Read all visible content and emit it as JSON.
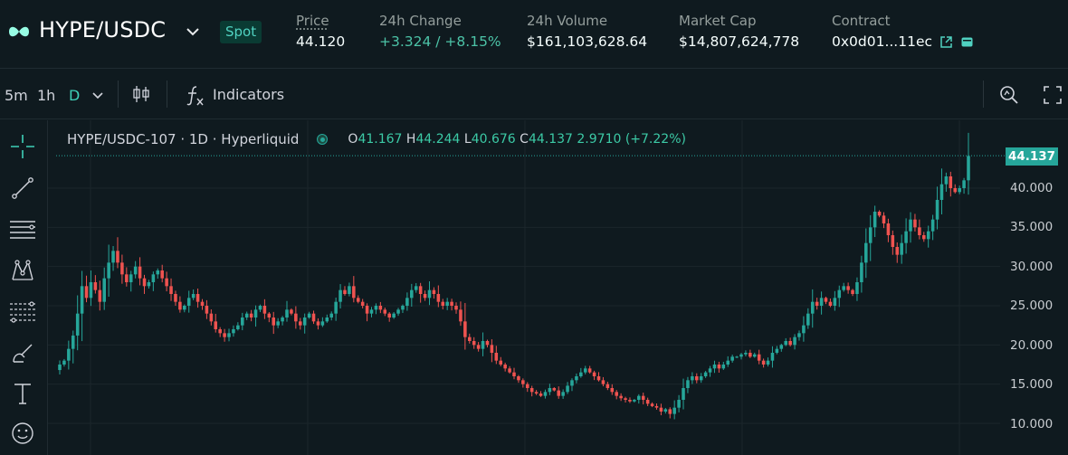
{
  "colors": {
    "background": "#0f1a1f",
    "accent": "#50d2c1",
    "up": "#26a69a",
    "down": "#ef5350",
    "positive_text": "#4cc3a7"
  },
  "header": {
    "pair": "HYPE/USDC",
    "market_type": "Spot",
    "stats": [
      {
        "label": "Price",
        "value": "44.120"
      },
      {
        "label": "24h Change",
        "value": "+3.324 / +8.15%"
      },
      {
        "label": "24h Volume",
        "value": "$161,103,628.64"
      },
      {
        "label": "Market Cap",
        "value": "$14,807,624,778"
      },
      {
        "label": "Contract",
        "value": "0x0d01...11ec"
      }
    ]
  },
  "toolbar": {
    "timeframes": [
      "5m",
      "1h",
      "D"
    ],
    "active_timeframe": "D",
    "indicators_label": "Indicators"
  },
  "chart": {
    "legend_title": "HYPE/USDC-107 · 1D · Hyperliquid",
    "ohlc": {
      "o_key": "O",
      "o": "41.167",
      "h_key": "H",
      "h": "44.244",
      "l_key": "L",
      "l": "40.676",
      "c_key": "C",
      "c": "44.137",
      "change": "2.9710 (+7.22%)"
    },
    "last_price_tag": "44.137",
    "y_ticks": [
      "40.000",
      "35.000",
      "30.000",
      "25.000",
      "20.000",
      "15.000",
      "10.000"
    ],
    "icons": [
      "crosshair-icon",
      "trendline-icon",
      "horizontal-lines-icon",
      "pattern-icon",
      "fib-icon",
      "brush-icon",
      "text-icon",
      "emoji-icon"
    ]
  },
  "chart_data": {
    "type": "candlestick",
    "ylabel": "",
    "ylim": [
      8.5,
      45.5
    ],
    "y_ticks": [
      10,
      15,
      20,
      25,
      30,
      35,
      40
    ],
    "last_close": 44.137,
    "closes": [
      17.5,
      18.0,
      19.5,
      21.2,
      24.0,
      27.5,
      26.0,
      28.0,
      27.0,
      25.5,
      28.5,
      30.5,
      32.0,
      30.5,
      29.0,
      28.0,
      29.0,
      30.0,
      28.5,
      27.5,
      28.0,
      29.0,
      29.5,
      28.5,
      27.5,
      26.5,
      25.5,
      24.5,
      25.0,
      26.0,
      26.5,
      25.5,
      25.0,
      24.0,
      23.0,
      22.0,
      21.5,
      21.0,
      21.5,
      22.0,
      22.5,
      23.5,
      24.0,
      23.5,
      24.5,
      25.0,
      24.0,
      23.5,
      22.5,
      23.0,
      23.5,
      24.5,
      24.0,
      23.0,
      22.5,
      23.5,
      24.0,
      23.0,
      22.5,
      23.0,
      23.5,
      24.0,
      25.5,
      27.0,
      26.5,
      27.5,
      26.0,
      25.5,
      25.0,
      24.0,
      24.5,
      25.0,
      24.5,
      24.0,
      23.5,
      24.0,
      24.5,
      25.0,
      26.0,
      27.0,
      27.5,
      26.5,
      26.0,
      27.0,
      26.5,
      25.5,
      25.0,
      25.5,
      25.0,
      24.5,
      23.0,
      21.0,
      20.5,
      20.0,
      19.5,
      20.5,
      20.0,
      19.0,
      18.0,
      17.5,
      17.0,
      16.5,
      16.0,
      15.5,
      15.0,
      14.5,
      14.0,
      13.8,
      13.5,
      14.0,
      14.5,
      14.2,
      13.5,
      14.0,
      14.8,
      15.5,
      16.0,
      16.5,
      17.0,
      16.5,
      16.0,
      15.5,
      15.0,
      14.5,
      14.0,
      13.5,
      13.2,
      13.0,
      12.8,
      13.0,
      13.5,
      13.0,
      12.5,
      12.2,
      12.0,
      11.5,
      11.8,
      11.2,
      12.0,
      13.0,
      14.5,
      15.5,
      16.0,
      15.5,
      16.0,
      16.5,
      17.0,
      17.5,
      17.0,
      17.5,
      18.0,
      18.5,
      18.5,
      18.8,
      19.0,
      18.5,
      18.8,
      18.0,
      17.5,
      18.0,
      19.0,
      19.5,
      20.0,
      20.5,
      20.0,
      21.0,
      21.5,
      22.5,
      24.0,
      25.5,
      25.0,
      26.0,
      25.5,
      25.0,
      26.0,
      27.0,
      27.5,
      27.0,
      26.5,
      28.0,
      30.5,
      33.0,
      35.0,
      37.0,
      36.5,
      35.5,
      34.0,
      32.5,
      31.5,
      33.0,
      34.5,
      36.0,
      35.0,
      34.0,
      33.5,
      34.5,
      36.0,
      38.5,
      40.5,
      41.5,
      40.0,
      39.5,
      40.0,
      41.0,
      44.1
    ]
  }
}
